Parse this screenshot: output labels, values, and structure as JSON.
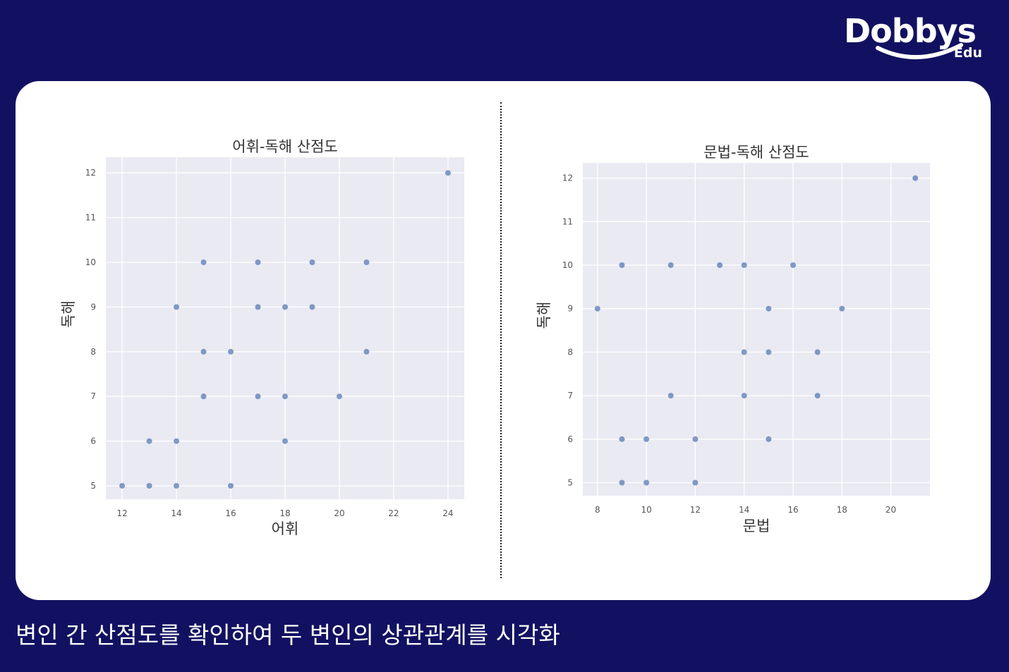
{
  "brand": {
    "name": "Dobbys",
    "sub": "Edu"
  },
  "caption": "변인 간 산점도를 확인하여 두 변인의 상관관계를 시각화",
  "chart_data": [
    {
      "type": "scatter",
      "title": "어휘-독해 산점도",
      "xlabel": "어휘",
      "ylabel": "독해",
      "xlim": [
        11.4,
        24.6
      ],
      "ylim": [
        4.7,
        12.35
      ],
      "xticks": [
        12,
        14,
        16,
        18,
        20,
        22,
        24
      ],
      "yticks": [
        5,
        6,
        7,
        8,
        9,
        10,
        11,
        12
      ],
      "grid": true,
      "point_color": "#4c72b0",
      "points": [
        [
          12,
          5
        ],
        [
          13,
          5
        ],
        [
          14,
          5
        ],
        [
          16,
          5
        ],
        [
          13,
          6
        ],
        [
          14,
          6
        ],
        [
          18,
          6
        ],
        [
          15,
          7
        ],
        [
          17,
          7
        ],
        [
          18,
          7
        ],
        [
          20,
          7
        ],
        [
          15,
          8
        ],
        [
          16,
          8
        ],
        [
          21,
          8
        ],
        [
          14,
          9
        ],
        [
          17,
          9
        ],
        [
          18,
          9
        ],
        [
          19,
          9
        ],
        [
          15,
          10
        ],
        [
          17,
          10
        ],
        [
          19,
          10
        ],
        [
          21,
          10
        ],
        [
          24,
          12
        ]
      ]
    },
    {
      "type": "scatter",
      "title": "문법-독해 산점도",
      "xlabel": "문법",
      "ylabel": "독해",
      "xlim": [
        7.4,
        21.6
      ],
      "ylim": [
        4.7,
        12.35
      ],
      "xticks": [
        8,
        10,
        12,
        14,
        16,
        18,
        20
      ],
      "yticks": [
        5,
        6,
        7,
        8,
        9,
        10,
        11,
        12
      ],
      "grid": true,
      "point_color": "#4c72b0",
      "points": [
        [
          9,
          5
        ],
        [
          10,
          5
        ],
        [
          12,
          5
        ],
        [
          9,
          6
        ],
        [
          10,
          6
        ],
        [
          12,
          6
        ],
        [
          15,
          6
        ],
        [
          11,
          7
        ],
        [
          14,
          7
        ],
        [
          17,
          7
        ],
        [
          14,
          8
        ],
        [
          15,
          8
        ],
        [
          17,
          8
        ],
        [
          8,
          9
        ],
        [
          15,
          9
        ],
        [
          18,
          9
        ],
        [
          9,
          10
        ],
        [
          11,
          10
        ],
        [
          13,
          10
        ],
        [
          14,
          10
        ],
        [
          16,
          10
        ],
        [
          21,
          12
        ]
      ]
    }
  ]
}
